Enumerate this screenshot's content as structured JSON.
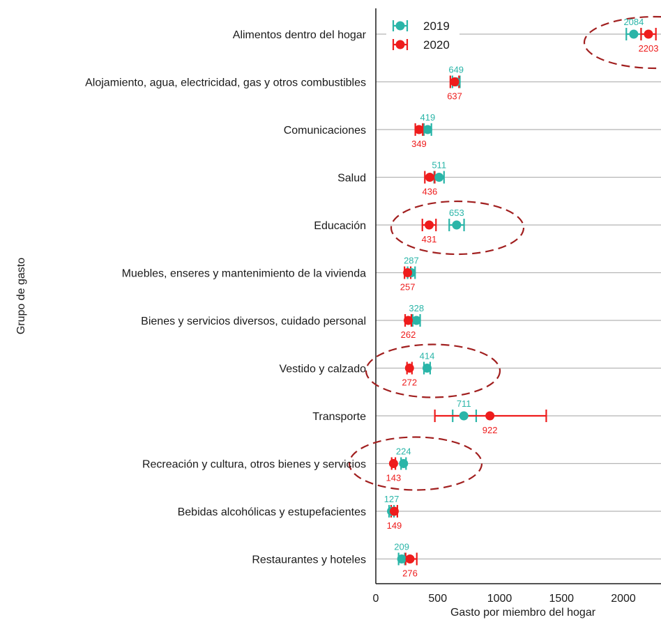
{
  "chart_data": {
    "type": "scatter",
    "xlabel": "Gasto por miembro del hogar",
    "ylabel": "Grupo de gasto",
    "xlim": [
      0,
      2300
    ],
    "xticks": [
      0,
      500,
      1000,
      1500,
      2000
    ],
    "grid": "horizontal",
    "legend_position": "top-left",
    "categories": [
      "Alimentos dentro del hogar",
      "Alojamiento, agua, electricidad, gas y otros combustibles",
      "Comunicaciones",
      "Salud",
      "Educación",
      "Muebles, enseres y mantenimiento de la vivienda",
      "Bienes y servicios diversos, cuidado personal",
      "Vestido y calzado",
      "Transporte",
      "Recreación y cultura, otros bienes y servicios",
      "Bebidas alcohólicas y estupefacientes",
      "Restaurantes y hoteles"
    ],
    "series": [
      {
        "name": "2019",
        "color": "#2ab5a8",
        "values": [
          2084,
          649,
          419,
          511,
          653,
          287,
          328,
          414,
          711,
          224,
          127,
          209
        ],
        "ci_low": [
          2024,
          619,
          389,
          471,
          593,
          257,
          298,
          389,
          621,
          204,
          107,
          184
        ],
        "ci_high": [
          2144,
          679,
          449,
          551,
          713,
          317,
          358,
          439,
          811,
          244,
          147,
          234
        ]
      },
      {
        "name": "2020",
        "color": "#ee1c1c",
        "values": [
          2203,
          637,
          349,
          436,
          431,
          257,
          262,
          272,
          922,
          143,
          149,
          276
        ],
        "ci_low": [
          2143,
          602,
          319,
          396,
          376,
          232,
          237,
          252,
          477,
          128,
          124,
          241
        ],
        "ci_high": [
          2263,
          672,
          379,
          476,
          486,
          282,
          287,
          292,
          1377,
          158,
          174,
          331
        ]
      }
    ],
    "annotations": [
      {
        "type": "dashed-ellipse",
        "category": "Alimentos dentro del hogar"
      },
      {
        "type": "dashed-ellipse",
        "category": "Educación"
      },
      {
        "type": "dashed-ellipse",
        "category": "Vestido y calzado"
      },
      {
        "type": "dashed-ellipse",
        "category": "Recreación y cultura, otros bienes y servicios"
      }
    ],
    "annotation_color": "#a11f1f"
  }
}
